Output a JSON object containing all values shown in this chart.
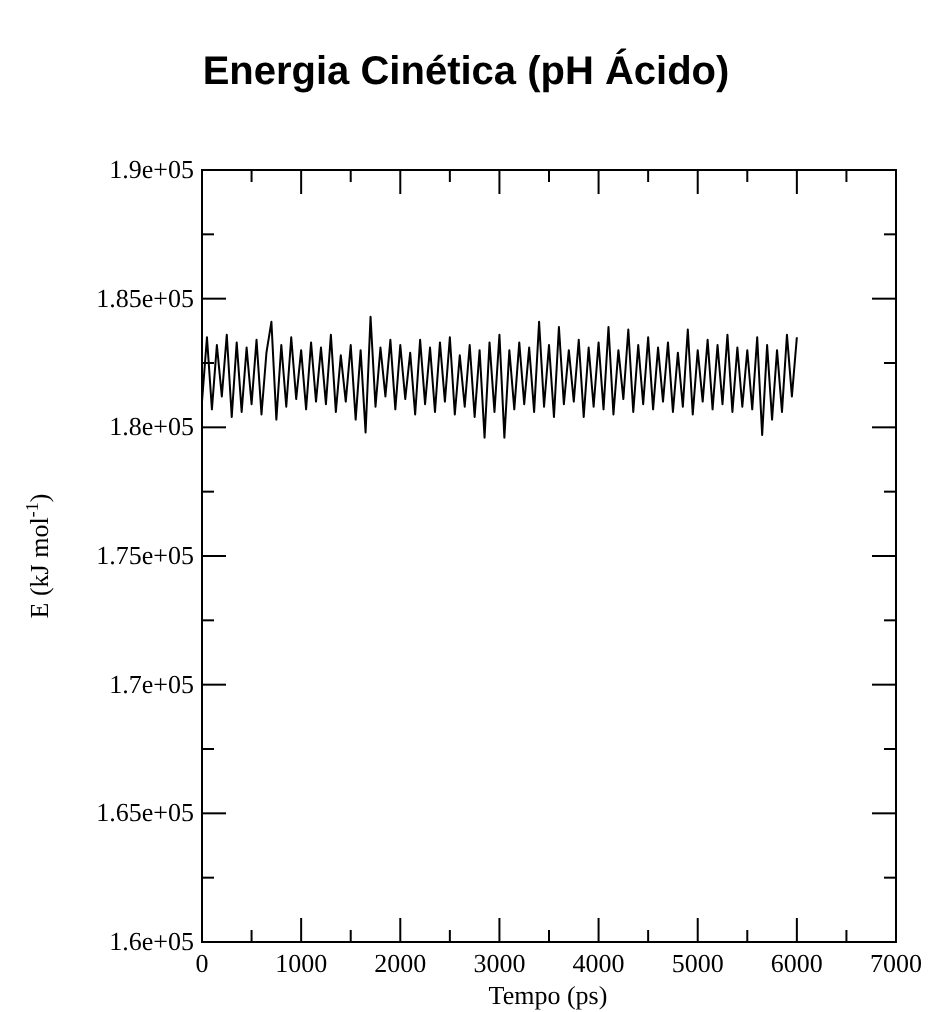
{
  "chart_data": {
    "type": "line",
    "title": "Energia Cinética (pH Ácido)",
    "xlabel": "Tempo (ps)",
    "ylabel": "E (kJ mol$^{-1}$)",
    "x": [
      0,
      50,
      100,
      150,
      200,
      250,
      300,
      350,
      400,
      450,
      500,
      550,
      600,
      650,
      700,
      750,
      800,
      850,
      900,
      950,
      1000,
      1050,
      1100,
      1150,
      1200,
      1250,
      1300,
      1350,
      1400,
      1450,
      1500,
      1550,
      1600,
      1650,
      1700,
      1750,
      1800,
      1850,
      1900,
      1950,
      2000,
      2050,
      2100,
      2150,
      2200,
      2250,
      2300,
      2350,
      2400,
      2450,
      2500,
      2550,
      2600,
      2650,
      2700,
      2750,
      2800,
      2850,
      2900,
      2950,
      3000,
      3050,
      3100,
      3150,
      3200,
      3250,
      3300,
      3350,
      3400,
      3450,
      3500,
      3550,
      3600,
      3650,
      3700,
      3750,
      3800,
      3850,
      3900,
      3950,
      4000,
      4050,
      4100,
      4150,
      4200,
      4250,
      4300,
      4350,
      4400,
      4450,
      4500,
      4550,
      4600,
      4650,
      4700,
      4750,
      4800,
      4850,
      4900,
      4950,
      5000,
      5050,
      5100,
      5150,
      5200,
      5250,
      5300,
      5350,
      5400,
      5450,
      5500,
      5550,
      5600,
      5650,
      5700,
      5750,
      5800,
      5850,
      5900,
      5950,
      6000
    ],
    "series": [
      {
        "color": "#000000",
        "values": [
          181000,
          183500,
          180700,
          183200,
          181200,
          183600,
          180400,
          183300,
          180600,
          183100,
          180900,
          183400,
          180500,
          182900,
          184100,
          180300,
          183200,
          180800,
          183500,
          181100,
          183000,
          180700,
          183300,
          181000,
          183100,
          180900,
          183600,
          180600,
          182800,
          181000,
          183200,
          180300,
          183000,
          179800,
          184300,
          180800,
          183100,
          181200,
          183400,
          180700,
          183200,
          181100,
          182900,
          180500,
          183400,
          180900,
          183100,
          180600,
          183300,
          181000,
          183500,
          180500,
          182800,
          180800,
          183200,
          180400,
          183000,
          179600,
          183300,
          180600,
          183600,
          179600,
          183000,
          180700,
          183300,
          180900,
          183100,
          180600,
          184100,
          180800,
          183200,
          180400,
          183900,
          180900,
          183000,
          181000,
          183400,
          180400,
          183100,
          180800,
          183300,
          180700,
          183900,
          180500,
          183000,
          181100,
          183800,
          180600,
          183200,
          180900,
          183500,
          180700,
          183100,
          181000,
          183300,
          180600,
          182900,
          180800,
          183800,
          180500,
          183000,
          181000,
          183400,
          180700,
          183200,
          180900,
          183600,
          180600,
          183100,
          180800,
          183000,
          180700,
          183500,
          179700,
          183200,
          180300,
          183000,
          180600,
          183600,
          181200,
          183500
        ]
      }
    ],
    "xlim": [
      0,
      7000
    ],
    "ylim": [
      160000,
      190000
    ],
    "xticks": [
      0,
      {
        "value": 500,
        "label": null
      },
      1000,
      {
        "value": 1500,
        "label": null
      },
      2000,
      {
        "value": 2500,
        "label": null
      },
      3000,
      {
        "value": 3500,
        "label": null
      },
      4000,
      {
        "value": 4500,
        "label": null
      },
      5000,
      {
        "value": 5500,
        "label": null
      },
      6000,
      {
        "value": 6500,
        "label": null
      },
      7000
    ],
    "yticks": [
      {
        "value": 160000,
        "label": "1.6e+05"
      },
      {
        "value": 162500,
        "label": null
      },
      {
        "value": 165000,
        "label": "1.65e+05"
      },
      {
        "value": 167500,
        "label": null
      },
      {
        "value": 170000,
        "label": "1.7e+05"
      },
      {
        "value": 172500,
        "label": null
      },
      {
        "value": 175000,
        "label": "1.75e+05"
      },
      {
        "value": 177500,
        "label": null
      },
      {
        "value": 180000,
        "label": "1.8e+05"
      },
      {
        "value": 182500,
        "label": null
      },
      {
        "value": 185000,
        "label": "1.85e+05"
      },
      {
        "value": 187500,
        "label": null
      },
      {
        "value": 190000,
        "label": "1.9e+05"
      }
    ],
    "grid": false,
    "marker": "none",
    "line_style": "solid"
  }
}
